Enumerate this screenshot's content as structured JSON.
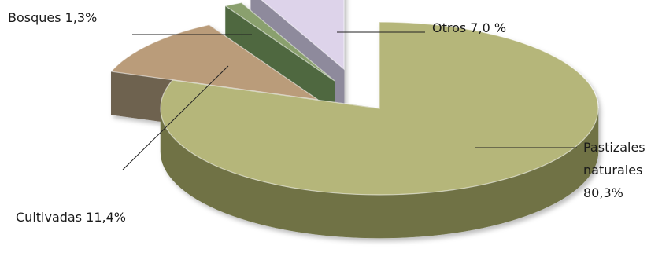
{
  "chart_data": {
    "type": "pie",
    "style": "3d-exploded",
    "title": "",
    "slices": [
      {
        "name": "Pastizales naturales",
        "value": 80.3,
        "label_lines": [
          "Pastizales",
          "naturales",
          "80,3%"
        ],
        "top_color": "#b5b67a",
        "side_color": "#6f7244"
      },
      {
        "name": "Cultivadas",
        "value": 11.4,
        "label_lines": [
          "Cultivadas 11,4%"
        ],
        "top_color": "#ba9c7a",
        "side_color": "#6e6250"
      },
      {
        "name": "Bosques",
        "value": 1.3,
        "label_lines": [
          "Bosques 1,3%"
        ],
        "top_color": "#8aa06e",
        "side_color": "#4f6840"
      },
      {
        "name": "Otros",
        "value": 7.0,
        "label_lines": [
          "Otros 7,0 %"
        ],
        "top_color": "#ddd3ea",
        "side_color": "#8e8a9c"
      }
    ]
  }
}
